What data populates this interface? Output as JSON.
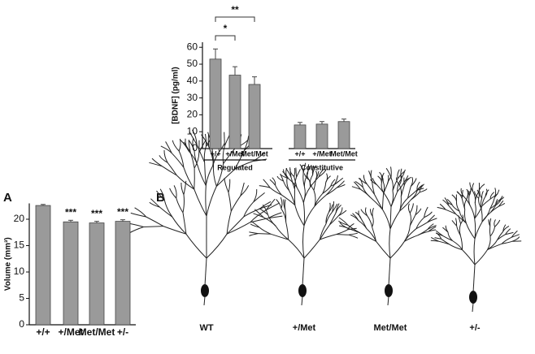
{
  "panels": {
    "a": "A",
    "b": "B"
  },
  "neurons": [
    "WT",
    "+/Met",
    "Met/Met",
    "+/-"
  ],
  "chart_data": [
    {
      "type": "bar",
      "y_label": "[BDNF] (pg/ml)",
      "color": "#9a9a9a",
      "categories": [
        "+/+",
        "+/Met",
        "Met/Met",
        "+/+",
        "+/Met",
        "Met/Met"
      ],
      "groups": [
        "Regulated",
        "Constitutive"
      ],
      "values": [
        53,
        43.5,
        38,
        14,
        14.5,
        16
      ],
      "errors": [
        6,
        5,
        4.5,
        1.5,
        1.5,
        1.5
      ],
      "ylim": [
        0,
        63
      ],
      "yticks": [
        0,
        10,
        20,
        30,
        40,
        50,
        60
      ],
      "significance": [
        {
          "text": "*",
          "from": 0,
          "to": 1
        },
        {
          "text": "**",
          "from": 0,
          "to": 2
        }
      ]
    },
    {
      "type": "bar",
      "y_label": "Volume (mm³)",
      "color": "#9a9a9a",
      "categories": [
        "+/+",
        "+/Met",
        "Met/Met",
        "+/-"
      ],
      "values": [
        22.6,
        19.5,
        19.3,
        19.6
      ],
      "errors": [
        0.2,
        0.3,
        0.3,
        0.3
      ],
      "value_annotations": [
        null,
        "***",
        "***",
        "***"
      ],
      "ylim": [
        0,
        23
      ],
      "yticks": [
        0,
        5,
        10,
        15,
        20
      ]
    }
  ]
}
